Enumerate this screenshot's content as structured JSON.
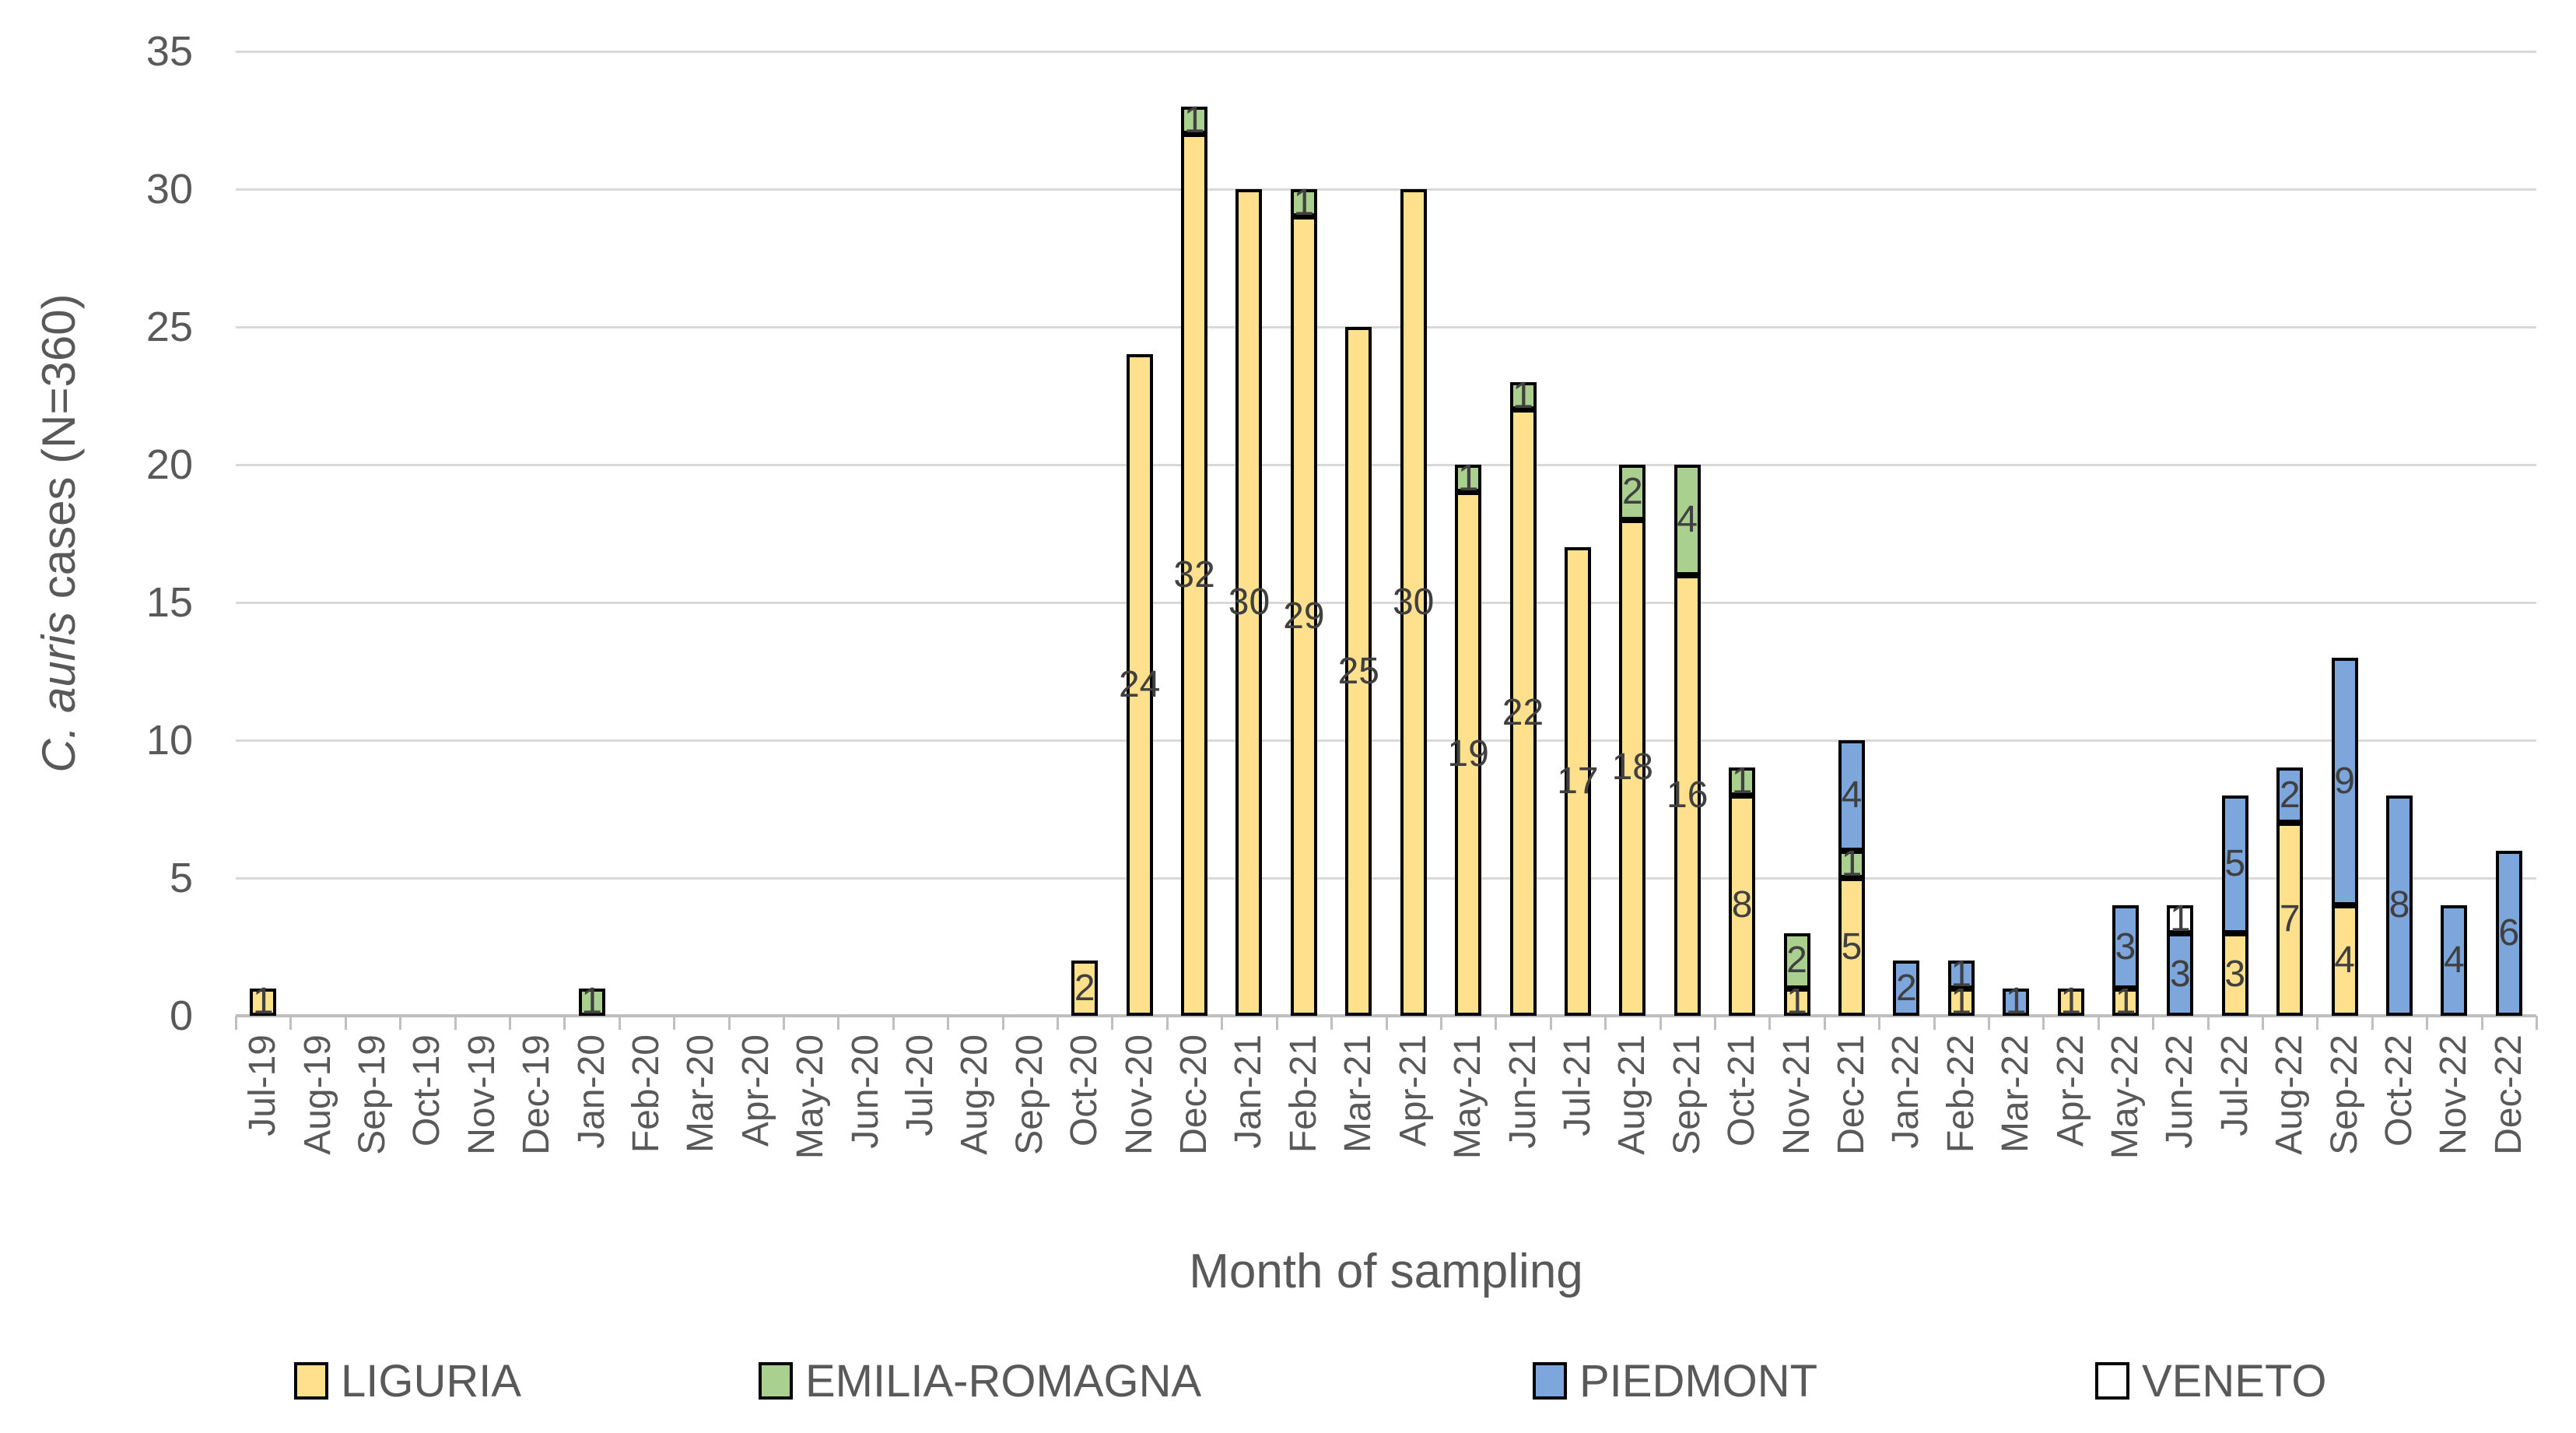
{
  "chart_data": {
    "type": "bar",
    "stacked": true,
    "title": "",
    "xlabel": "Month of sampling",
    "ylabel_italic": "C. auris",
    "ylabel_rest": " cases (N=360)",
    "ylim": [
      0,
      35
    ],
    "yticks": [
      0,
      5,
      10,
      15,
      20,
      25,
      30,
      35
    ],
    "grid": true,
    "legend_position": "bottom",
    "categories": [
      "Jul-19",
      "Aug-19",
      "Sep-19",
      "Oct-19",
      "Nov-19",
      "Dec-19",
      "Jan-20",
      "Feb-20",
      "Mar-20",
      "Apr-20",
      "May-20",
      "Jun-20",
      "Jul-20",
      "Aug-20",
      "Sep-20",
      "Oct-20",
      "Nov-20",
      "Dec-20",
      "Jan-21",
      "Feb-21",
      "Mar-21",
      "Apr-21",
      "May-21",
      "Jun-21",
      "Jul-21",
      "Aug-21",
      "Sep-21",
      "Oct-21",
      "Nov-21",
      "Dec-21",
      "Jan-22",
      "Feb-22",
      "Mar-22",
      "Apr-22",
      "May-22",
      "Jun-22",
      "Jul-22",
      "Aug-22",
      "Sep-22",
      "Oct-22",
      "Nov-22",
      "Dec-22"
    ],
    "series": [
      {
        "name": "LIGURIA",
        "color": "#FFE18D",
        "values": [
          1,
          0,
          0,
          0,
          0,
          0,
          0,
          0,
          0,
          0,
          0,
          0,
          0,
          0,
          0,
          2,
          24,
          32,
          30,
          29,
          25,
          30,
          19,
          22,
          17,
          18,
          16,
          8,
          1,
          5,
          0,
          1,
          0,
          1,
          1,
          0,
          3,
          7,
          4,
          0,
          0,
          0
        ]
      },
      {
        "name": "EMILIA-ROMAGNA",
        "color": "#A9D08E",
        "values": [
          0,
          0,
          0,
          0,
          0,
          0,
          1,
          0,
          0,
          0,
          0,
          0,
          0,
          0,
          0,
          0,
          0,
          1,
          0,
          1,
          0,
          0,
          1,
          1,
          0,
          2,
          4,
          1,
          2,
          1,
          0,
          0,
          0,
          0,
          0,
          0,
          0,
          0,
          0,
          0,
          0,
          0
        ]
      },
      {
        "name": "PIEDMONT",
        "color": "#7CA6DC",
        "values": [
          0,
          0,
          0,
          0,
          0,
          0,
          0,
          0,
          0,
          0,
          0,
          0,
          0,
          0,
          0,
          0,
          0,
          0,
          0,
          0,
          0,
          0,
          0,
          0,
          0,
          0,
          0,
          0,
          0,
          4,
          2,
          1,
          1,
          0,
          3,
          3,
          5,
          2,
          9,
          8,
          4,
          6
        ]
      },
      {
        "name": "VENETO",
        "color": "#FFFFFF",
        "values": [
          0,
          0,
          0,
          0,
          0,
          0,
          0,
          0,
          0,
          0,
          0,
          0,
          0,
          0,
          0,
          0,
          0,
          0,
          0,
          0,
          0,
          0,
          0,
          0,
          0,
          0,
          0,
          0,
          0,
          0,
          0,
          0,
          0,
          0,
          0,
          1,
          0,
          0,
          0,
          0,
          0,
          0
        ]
      }
    ],
    "data_label_color": "#404040",
    "axis_text_color": "#595959",
    "bar_border_color": "#000000",
    "gridline_color": "#D9D9D9",
    "axis_line_color": "#BFBFBF"
  }
}
